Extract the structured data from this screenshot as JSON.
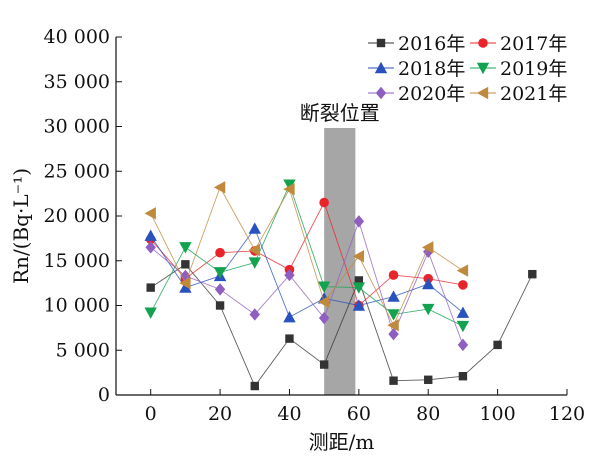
{
  "chart_data": {
    "type": "line",
    "xlabel": "测距/m",
    "ylabel": "Rn/(Bq·L⁻¹)",
    "xlim": [
      -10,
      120
    ],
    "ylim": [
      0,
      40000
    ],
    "xticks": [
      0,
      20,
      40,
      60,
      80,
      100,
      120
    ],
    "yticks": [
      0,
      5000,
      10000,
      15000,
      20000,
      25000,
      30000,
      35000,
      40000
    ],
    "ytick_labels": [
      "0",
      "5 000",
      "10 000",
      "15 000",
      "20 000",
      "25 000",
      "30 000",
      "35 000",
      "40 000"
    ],
    "grid": false,
    "legend_position": "top-right",
    "annotation": {
      "label": "断裂位置",
      "band_x": [
        50,
        59
      ],
      "color": "#a6a6a6"
    },
    "series": [
      {
        "name": "2016年",
        "marker": "square",
        "color": "#333333",
        "x": [
          0,
          10,
          20,
          30,
          40,
          50,
          60,
          70,
          80,
          90,
          100,
          110
        ],
        "y": [
          12000,
          14600,
          10000,
          1000,
          6300,
          3400,
          12800,
          1600,
          1700,
          2100,
          5600,
          13500
        ]
      },
      {
        "name": "2017年",
        "marker": "circle",
        "color": "#e8262a",
        "x": [
          0,
          10,
          20,
          30,
          40,
          50,
          60,
          70,
          80,
          90
        ],
        "y": [
          17400,
          13000,
          15900,
          16100,
          14000,
          21500,
          10000,
          13400,
          13000,
          12300
        ]
      },
      {
        "name": "2018年",
        "marker": "triangle-up",
        "color": "#2a52be",
        "x": [
          0,
          10,
          20,
          30,
          40,
          50,
          60,
          70,
          80,
          90
        ],
        "y": [
          17800,
          12000,
          13300,
          18600,
          8700,
          10800,
          10000,
          11000,
          12400,
          9200
        ]
      },
      {
        "name": "2019年",
        "marker": "triangle-down",
        "color": "#13a350",
        "x": [
          0,
          10,
          20,
          30,
          40,
          50,
          60,
          70,
          80,
          90
        ],
        "y": [
          9200,
          16500,
          13700,
          14800,
          23500,
          12100,
          12000,
          9000,
          9600,
          7700
        ]
      },
      {
        "name": "2020年",
        "marker": "diamond",
        "color": "#8e5fc0",
        "x": [
          0,
          10,
          20,
          30,
          40,
          50,
          60,
          70,
          80,
          90
        ],
        "y": [
          16500,
          13300,
          11800,
          9000,
          13400,
          8600,
          19400,
          6800,
          16000,
          5600
        ]
      },
      {
        "name": "2021年",
        "marker": "triangle-left",
        "color": "#c08a3c",
        "x": [
          0,
          10,
          20,
          30,
          40,
          50,
          60,
          70,
          80,
          90
        ],
        "y": [
          20300,
          12500,
          23200,
          16200,
          23000,
          10400,
          15500,
          7800,
          16500,
          13900
        ]
      }
    ]
  }
}
